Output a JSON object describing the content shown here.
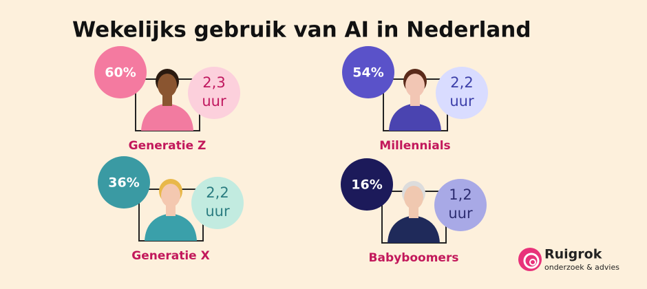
{
  "header": {
    "title": "Wekelijks gebruik van AI in Nederland"
  },
  "groups": [
    {
      "label": "Generatie Z",
      "percentage": "60%",
      "hours": "2,3",
      "unit": "uur"
    },
    {
      "label": "Millennials",
      "percentage": "54%",
      "hours": "2,2",
      "unit": "uur"
    },
    {
      "label": "Generatie X",
      "percentage": "36%",
      "hours": "2,2",
      "unit": "uur"
    },
    {
      "label": "Babyboomers",
      "percentage": "16%",
      "hours": "1,2",
      "unit": "uur"
    }
  ],
  "logo": {
    "name": "Ruigrok",
    "tagline": "onderzoek & advies"
  }
}
